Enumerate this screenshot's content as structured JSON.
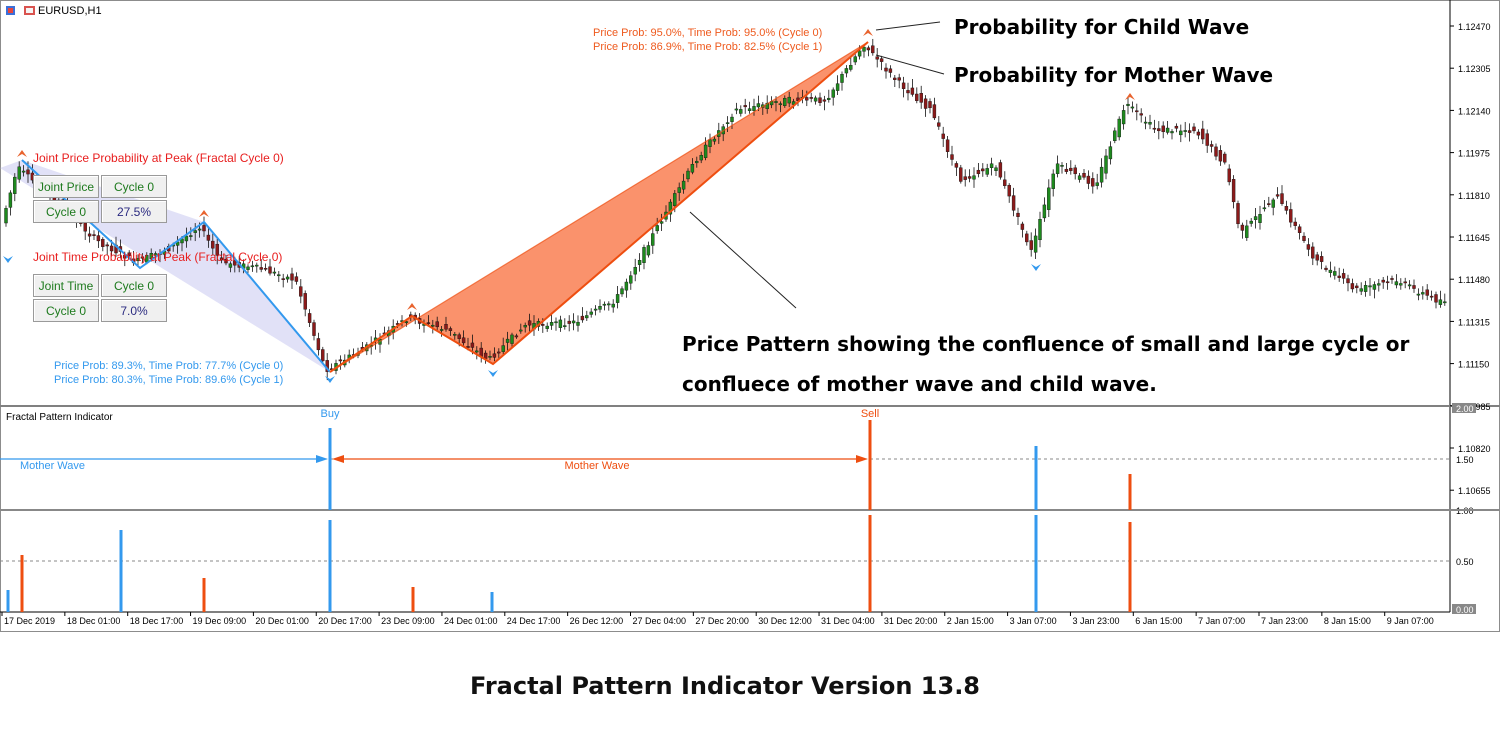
{
  "window": {
    "title": "EURUSD,H1"
  },
  "main_chart": {
    "price_axis": [
      "1.12470",
      "1.12305",
      "1.12140",
      "1.11975",
      "1.11810",
      "1.11645",
      "1.11480",
      "1.11315",
      "1.11150",
      "1.10985",
      "1.10820",
      "1.10655"
    ],
    "annotations": {
      "child_prob": "Price Prob: 95.0%, Time Prob: 95.0% (Cycle 0)",
      "mother_prob": "Price Prob: 86.9%, Time Prob: 82.5% (Cycle 1)",
      "bottom_prob_1": "Price Prob: 89.3%, Time Prob: 77.7% (Cycle 0)",
      "bottom_prob_2": "Price Prob: 80.3%, Time Prob: 89.6% (Cycle 1)",
      "joint_price_heading": "Joint Price Probability at Peak (Fractal Cycle 0)",
      "joint_time_heading": "Joint Time Probability at Peak (Fractal Cycle 0)",
      "child_callout": "Probability for Child Wave",
      "mother_callout": "Probability for Mother Wave",
      "pattern_note_line1": "Price Pattern showing the confluence of small and large cycle or",
      "pattern_note_line2": "confluece of mother wave and child wave."
    },
    "joint_price_table": {
      "header": "Joint Price",
      "cycle_header": "Cycle 0",
      "row_label": "Cycle 0",
      "value": "27.5%"
    },
    "joint_time_table": {
      "header": "Joint Time",
      "cycle_header": "Cycle 0",
      "row_label": "Cycle 0",
      "value": "7.0%"
    }
  },
  "indicator": {
    "name": "Fractal Pattern Indicator",
    "axis": [
      "2.00",
      "1.50",
      "1.00",
      "0.50",
      "0.00"
    ],
    "buy_label": "Buy",
    "sell_label": "Sell",
    "mother_wave_left": "Mother Wave",
    "mother_wave_mid": "Mother Wave"
  },
  "time_axis": [
    "17 Dec 2019",
    "18 Dec 01:00",
    "18 Dec 17:00",
    "19 Dec 09:00",
    "20 Dec 01:00",
    "20 Dec 17:00",
    "23 Dec 09:00",
    "24 Dec 01:00",
    "24 Dec 17:00",
    "26 Dec 12:00",
    "27 Dec 04:00",
    "27 Dec 20:00",
    "30 Dec 12:00",
    "31 Dec 04:00",
    "31 Dec 20:00",
    "2 Jan 15:00",
    "3 Jan 07:00",
    "3 Jan 23:00",
    "6 Jan 15:00",
    "7 Jan 07:00",
    "7 Jan 23:00",
    "8 Jan 15:00",
    "9 Jan 07:00"
  ],
  "footer": {
    "title": "Fractal Pattern Indicator Version 13.8"
  },
  "colors": {
    "bull": "#1e8a1e",
    "bear": "#8b1a1a",
    "blue": "#3399ee",
    "orange": "#ee4e10",
    "fill_orange": "#fa8c64",
    "fill_blue": "#c8c8f0"
  }
}
